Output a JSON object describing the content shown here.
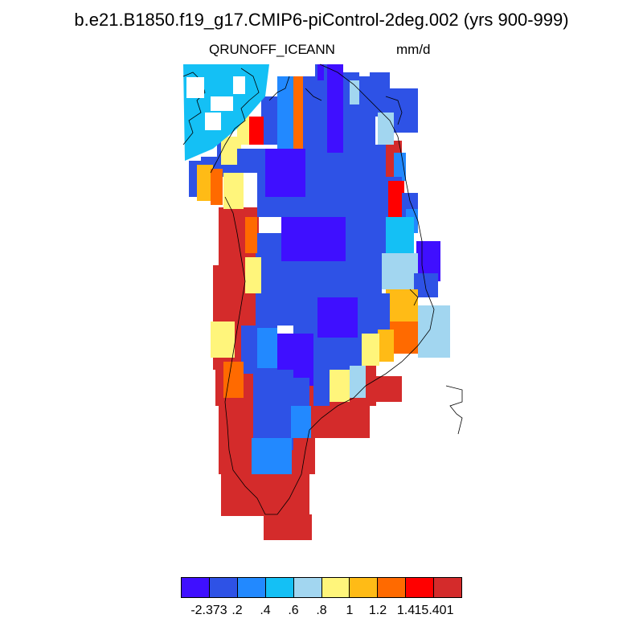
{
  "title": "b.e21.B1850.f19_g17.CMIP6-piControl-2deg.002 (yrs 900-999)",
  "variable": "QRUNOFF_ICE",
  "season": "ANN",
  "units": "mm/d",
  "colorbar": {
    "colors": [
      "#3F0FFF",
      "#2E52E6",
      "#2289FF",
      "#14C0F5",
      "#A2D6F0",
      "#FFF57B",
      "#FFBB16",
      "#FF6A00",
      "#FF0000",
      "#D42B2B"
    ],
    "labels": [
      "-2.373",
      ".2",
      ".4",
      ".6",
      ".8",
      "1",
      "1.2",
      "1.4",
      "15.401"
    ]
  }
}
